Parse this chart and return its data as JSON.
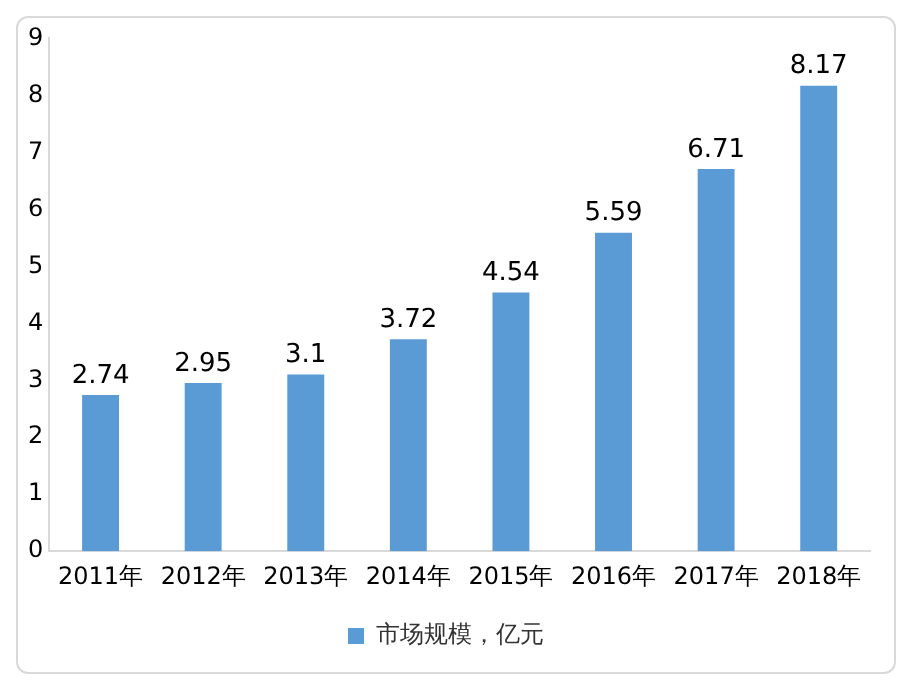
{
  "chart_data": {
    "type": "bar",
    "categories": [
      "2011年",
      "2012年",
      "2013年",
      "2014年",
      "2015年",
      "2016年",
      "2017年",
      "2018年"
    ],
    "series": [
      {
        "name": "市场规模，亿元",
        "color": "#5b9bd5",
        "values": [
          2.74,
          2.95,
          3.1,
          3.72,
          4.54,
          5.59,
          6.71,
          8.17
        ]
      }
    ],
    "ylim": [
      0,
      9
    ],
    "yticks": [
      0,
      1,
      2,
      3,
      4,
      5,
      6,
      7,
      8,
      9
    ],
    "grid": false,
    "legend": "bottom",
    "data_labels": true
  }
}
